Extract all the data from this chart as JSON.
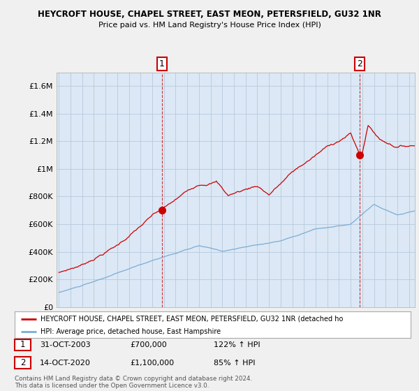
{
  "title1": "HEYCROFT HOUSE, CHAPEL STREET, EAST MEON, PETERSFIELD, GU32 1NR",
  "title2": "Price paid vs. HM Land Registry's House Price Index (HPI)",
  "background_color": "#f0f0f0",
  "plot_bg_color": "#dce8f5",
  "red_color": "#cc0000",
  "blue_color": "#7aadd4",
  "legend_label1": "HEYCROFT HOUSE, CHAPEL STREET, EAST MEON, PETERSFIELD, GU32 1NR (detached ho",
  "legend_label2": "HPI: Average price, detached house, East Hampshire",
  "table_row1": [
    "1",
    "31-OCT-2003",
    "£700,000",
    "122% ↑ HPI"
  ],
  "table_row2": [
    "2",
    "14-OCT-2020",
    "£1,100,000",
    "85% ↑ HPI"
  ],
  "footer": "Contains HM Land Registry data © Crown copyright and database right 2024.\nThis data is licensed under the Open Government Licence v3.0.",
  "ylim_max": 1700000,
  "yticks": [
    0,
    200000,
    400000,
    600000,
    800000,
    1000000,
    1200000,
    1400000,
    1600000
  ],
  "ytick_labels": [
    "£0",
    "£200K",
    "£400K",
    "£600K",
    "£800K",
    "£1M",
    "£1.2M",
    "£1.4M",
    "£1.6M"
  ],
  "xstart_year": 1995,
  "xend_year": 2025,
  "ann1_year": 2003.833,
  "ann1_price": 700000,
  "ann2_year": 2020.792,
  "ann2_price": 1100000
}
